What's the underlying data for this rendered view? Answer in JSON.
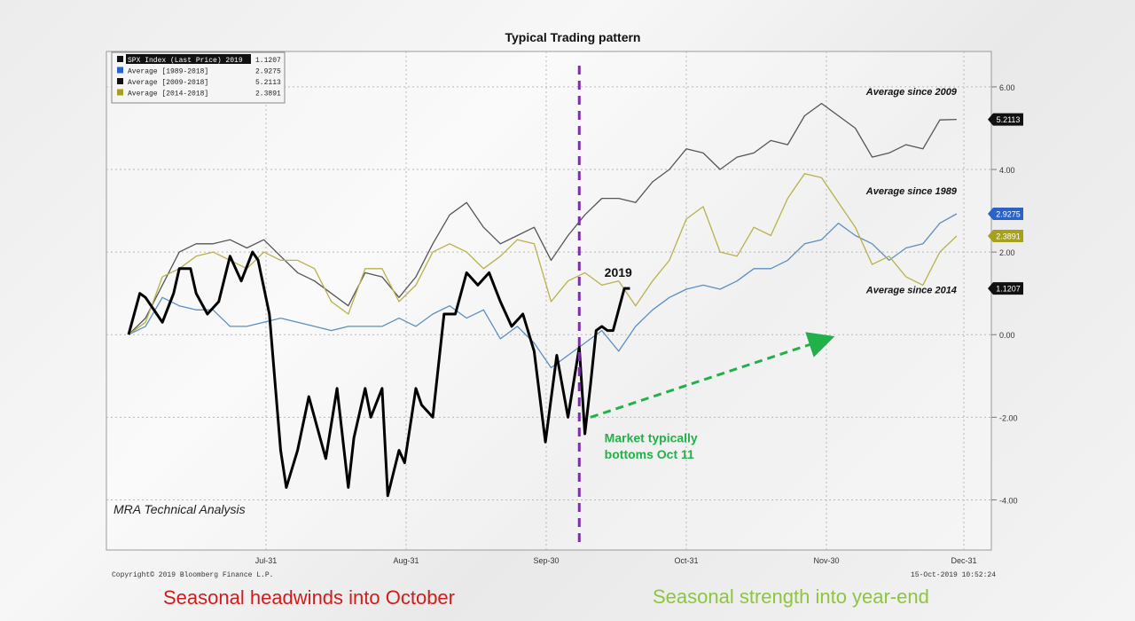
{
  "chart_data": {
    "type": "line",
    "title": "Typical Trading pattern",
    "x_tick_labels": [
      "Jul-31",
      "Aug-31",
      "Sep-30",
      "Oct-31",
      "Nov-30",
      "Dec-31"
    ],
    "y_tick_labels": [
      "6.00",
      "4.00",
      "2.00",
      "0.00",
      "-2.00",
      "-4.00"
    ],
    "ylim": [
      -5.0,
      6.6
    ],
    "x_range_days": [
      0,
      150
    ],
    "grid": true,
    "legend_position": "top-left",
    "legend": [
      {
        "name": "SPX Index (Last Price) 2019",
        "value": "1.1207",
        "color": "#111111"
      },
      {
        "name": "Average [1989-2018]",
        "value": "2.9275",
        "color": "#2a62c9"
      },
      {
        "name": "Average [2009-2018]",
        "value": "5.2113",
        "color": "#111111"
      },
      {
        "name": "Average [2014-2018]",
        "value": "2.3891",
        "color": "#a6a01c"
      }
    ],
    "last_value_badges": [
      {
        "label": "5.2113",
        "y": 5.2113,
        "color": "#111111"
      },
      {
        "label": "2.9275",
        "y": 2.9275,
        "color": "#2a62c9"
      },
      {
        "label": "2.3891",
        "y": 2.3891,
        "color": "#a6a01c"
      },
      {
        "label": "1.1207",
        "y": 1.1207,
        "color": "#111111"
      }
    ],
    "series": [
      {
        "name": "Average since 2009",
        "color": "#555555",
        "x": [
          0,
          3,
          6,
          9,
          12,
          15,
          18,
          21,
          24,
          27,
          30,
          33,
          36,
          39,
          42,
          45,
          48,
          51,
          54,
          57,
          60,
          63,
          66,
          69,
          72,
          75,
          78,
          81,
          84,
          87,
          90,
          93,
          96,
          99,
          102,
          105,
          108,
          111,
          114,
          117,
          120,
          123,
          126,
          129,
          132,
          135,
          138,
          141,
          144,
          147
        ],
        "values": [
          0.0,
          0.4,
          1.2,
          2.0,
          2.2,
          2.2,
          2.3,
          2.1,
          2.3,
          1.9,
          1.5,
          1.3,
          1.0,
          0.7,
          1.5,
          1.4,
          0.9,
          1.4,
          2.2,
          2.9,
          3.2,
          2.6,
          2.2,
          2.4,
          2.6,
          1.8,
          2.4,
          2.9,
          3.3,
          3.3,
          3.2,
          3.7,
          4.0,
          4.5,
          4.4,
          4.0,
          4.3,
          4.4,
          4.7,
          4.6,
          5.3,
          5.6,
          5.3,
          5.0,
          4.3,
          4.4,
          4.6,
          4.5,
          5.2,
          5.2113
        ]
      },
      {
        "name": "Average since 1989",
        "color": "#5b8fc0",
        "x": [
          0,
          3,
          6,
          9,
          12,
          15,
          18,
          21,
          24,
          27,
          30,
          33,
          36,
          39,
          42,
          45,
          48,
          51,
          54,
          57,
          60,
          63,
          66,
          69,
          72,
          75,
          78,
          81,
          84,
          87,
          90,
          93,
          96,
          99,
          102,
          105,
          108,
          111,
          114,
          117,
          120,
          123,
          126,
          129,
          132,
          135,
          138,
          141,
          144,
          147
        ],
        "values": [
          0.0,
          0.2,
          0.9,
          0.7,
          0.6,
          0.6,
          0.2,
          0.2,
          0.3,
          0.4,
          0.3,
          0.2,
          0.1,
          0.2,
          0.2,
          0.2,
          0.4,
          0.2,
          0.5,
          0.7,
          0.4,
          0.6,
          -0.1,
          0.2,
          -0.2,
          -0.8,
          -0.5,
          -0.2,
          0.1,
          -0.4,
          0.2,
          0.6,
          0.9,
          1.1,
          1.2,
          1.1,
          1.3,
          1.6,
          1.6,
          1.8,
          2.2,
          2.3,
          2.7,
          2.4,
          2.2,
          1.8,
          2.1,
          2.2,
          2.7,
          2.9275
        ]
      },
      {
        "name": "Average since 2014",
        "color": "#b9b14a",
        "x": [
          0,
          3,
          6,
          9,
          12,
          15,
          18,
          21,
          24,
          27,
          30,
          33,
          36,
          39,
          42,
          45,
          48,
          51,
          54,
          57,
          60,
          63,
          66,
          69,
          72,
          75,
          78,
          81,
          84,
          87,
          90,
          93,
          96,
          99,
          102,
          105,
          108,
          111,
          114,
          117,
          120,
          123,
          126,
          129,
          132,
          135,
          138,
          141,
          144,
          147
        ],
        "values": [
          0.0,
          0.3,
          1.4,
          1.6,
          1.9,
          2.0,
          1.8,
          1.6,
          2.0,
          1.8,
          1.8,
          1.6,
          0.8,
          0.5,
          1.6,
          1.6,
          0.8,
          1.2,
          2.0,
          2.2,
          2.0,
          1.6,
          1.9,
          2.3,
          2.2,
          0.8,
          1.3,
          1.5,
          1.2,
          1.3,
          0.7,
          1.3,
          1.8,
          2.8,
          3.1,
          2.0,
          1.9,
          2.6,
          2.4,
          3.3,
          3.9,
          3.8,
          3.2,
          2.6,
          1.7,
          1.9,
          1.4,
          1.2,
          2.0,
          2.3891
        ]
      },
      {
        "name": "2019",
        "color": "#000000",
        "x": [
          0,
          2,
          3,
          5,
          6,
          8,
          9,
          11,
          12,
          14,
          16,
          18,
          20,
          22,
          23,
          25,
          27,
          28,
          30,
          32,
          34,
          35,
          37,
          39,
          40,
          42,
          43,
          45,
          46,
          48,
          49,
          51,
          52,
          54,
          56,
          58,
          60,
          62,
          64,
          66,
          68,
          70,
          72,
          74,
          76,
          78,
          80,
          81,
          82,
          83,
          84,
          85,
          86,
          88,
          89
        ],
        "values": [
          0.0,
          1.0,
          0.9,
          0.5,
          0.3,
          1.0,
          1.6,
          1.6,
          1.0,
          0.5,
          0.8,
          1.9,
          1.3,
          2.0,
          1.8,
          0.5,
          -2.8,
          -3.7,
          -2.8,
          -1.5,
          -2.5,
          -3.0,
          -1.3,
          -3.7,
          -2.5,
          -1.3,
          -2.0,
          -1.3,
          -3.9,
          -2.8,
          -3.1,
          -1.3,
          -1.7,
          -2.0,
          0.5,
          0.5,
          1.5,
          1.2,
          1.5,
          0.8,
          0.2,
          0.5,
          -0.4,
          -2.6,
          -0.5,
          -2.0,
          -0.3,
          -2.4,
          -1.2,
          0.1,
          0.2,
          0.1,
          0.1,
          1.1207,
          1.1207
        ]
      }
    ],
    "annotations": [
      {
        "text": "Average since 2009",
        "x": 147,
        "y": 5.8
      },
      {
        "text": "Average since 1989",
        "x": 147,
        "y": 3.4
      },
      {
        "text": "Average since 2014",
        "x": 147,
        "y": 1.0
      },
      {
        "text": "2019",
        "x": 84,
        "y": 1.4
      },
      {
        "text": "Market typically",
        "x": 84,
        "y": -2.6
      },
      {
        "text": "bottoms Oct 11",
        "x": 84,
        "y": -3.0
      }
    ],
    "vertical_marker": {
      "x": 80,
      "label": "Oct 11"
    },
    "trend_arrow": {
      "from": [
        82,
        -2.0
      ],
      "to": [
        124,
        -0.1
      ]
    }
  },
  "watermark": "MRA Technical Analysis",
  "copyright": "Copyright© 2019 Bloomberg Finance L.P.",
  "timestamp": "15-Oct-2019 10:52:24",
  "footer": {
    "left": "Seasonal headwinds into October",
    "right": "Seasonal strength into year-end"
  }
}
